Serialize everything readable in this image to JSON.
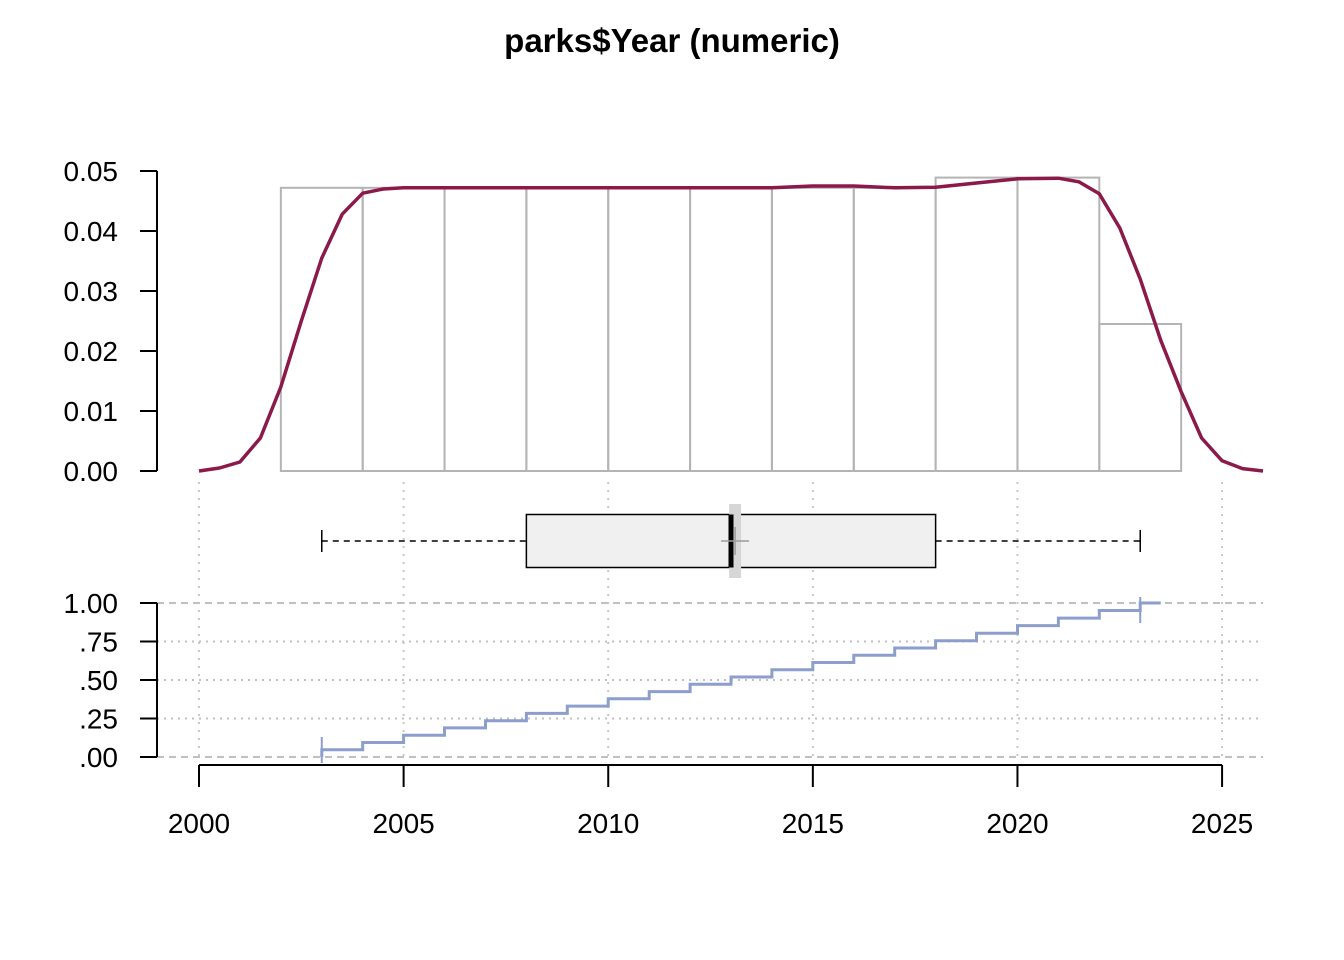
{
  "title": "parks$Year (numeric)",
  "chart_data": [
    {
      "type": "histogram",
      "panel": "density",
      "x_range": [
        2000,
        2026
      ],
      "ylim": [
        0,
        0.05
      ],
      "y_ticks": [
        "0.00",
        "0.01",
        "0.02",
        "0.03",
        "0.04",
        "0.05"
      ],
      "bins": [
        {
          "x0": 2002,
          "x1": 2004,
          "density": 0.0472
        },
        {
          "x0": 2004,
          "x1": 2006,
          "density": 0.0472
        },
        {
          "x0": 2006,
          "x1": 2008,
          "density": 0.0472
        },
        {
          "x0": 2008,
          "x1": 2010,
          "density": 0.0472
        },
        {
          "x0": 2010,
          "x1": 2012,
          "density": 0.0472
        },
        {
          "x0": 2012,
          "x1": 2014,
          "density": 0.0472
        },
        {
          "x0": 2014,
          "x1": 2016,
          "density": 0.0472
        },
        {
          "x0": 2016,
          "x1": 2018,
          "density": 0.0472
        },
        {
          "x0": 2018,
          "x1": 2020,
          "density": 0.0489
        },
        {
          "x0": 2020,
          "x1": 2022,
          "density": 0.0489
        },
        {
          "x0": 2022,
          "x1": 2024,
          "density": 0.0245
        }
      ],
      "density_curve": {
        "color": "#8B1A4A",
        "x": [
          2000,
          2000.5,
          2001,
          2001.5,
          2002,
          2002.5,
          2003,
          2003.5,
          2004,
          2004.5,
          2005,
          2006,
          2007,
          2008,
          2009,
          2010,
          2011,
          2012,
          2013,
          2014,
          2015,
          2016,
          2017,
          2018,
          2019,
          2020,
          2021,
          2021.5,
          2022,
          2022.5,
          2023,
          2023.5,
          2024,
          2024.5,
          2025,
          2025.5,
          2026
        ],
        "y": [
          0.0,
          0.0005,
          0.0015,
          0.0055,
          0.014,
          0.025,
          0.0355,
          0.0428,
          0.0463,
          0.047,
          0.0472,
          0.0472,
          0.0472,
          0.0472,
          0.0472,
          0.0472,
          0.0472,
          0.0472,
          0.0472,
          0.0472,
          0.0475,
          0.0475,
          0.0472,
          0.0473,
          0.048,
          0.0487,
          0.0488,
          0.0482,
          0.0462,
          0.0405,
          0.032,
          0.0218,
          0.0132,
          0.0055,
          0.0017,
          0.0004,
          0.0
        ]
      }
    },
    {
      "type": "boxplot",
      "panel": "box",
      "whisker_low": 2003,
      "q1": 2008,
      "median": 2013,
      "mean": 2013.1,
      "q3": 2018,
      "whisker_high": 2023,
      "box_fill": "#F0F0F0"
    },
    {
      "type": "step",
      "panel": "ecdf",
      "color": "#8C9ECB",
      "ylim": [
        0,
        1
      ],
      "y_ticks": [
        ".00",
        ".25",
        ".50",
        ".75",
        "1.00"
      ],
      "x": [
        2003,
        2004,
        2005,
        2006,
        2007,
        2008,
        2009,
        2010,
        2011,
        2012,
        2013,
        2014,
        2015,
        2016,
        2017,
        2018,
        2019,
        2020,
        2021,
        2022,
        2023
      ],
      "y": [
        0.0472,
        0.0944,
        0.1416,
        0.1888,
        0.236,
        0.2832,
        0.3304,
        0.3776,
        0.4248,
        0.472,
        0.5192,
        0.5664,
        0.6136,
        0.6608,
        0.708,
        0.7552,
        0.8042,
        0.8532,
        0.9022,
        0.9512,
        1.0
      ]
    }
  ],
  "x_axis": {
    "ticks": [
      2000,
      2005,
      2010,
      2015,
      2020,
      2025
    ],
    "tick_labels": [
      "2000",
      "2005",
      "2010",
      "2015",
      "2020",
      "2025"
    ]
  }
}
